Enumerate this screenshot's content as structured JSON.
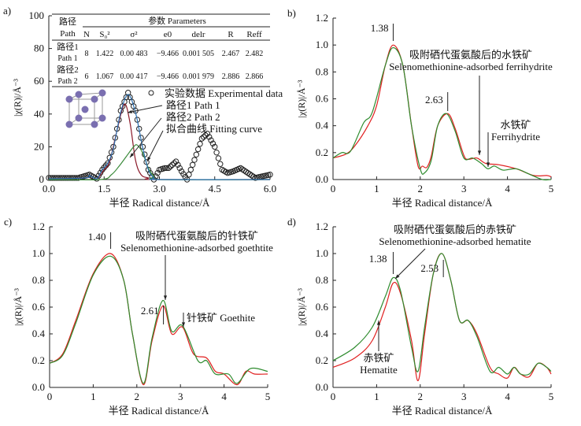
{
  "chart_data": [
    {
      "panel": "a)",
      "type": "line",
      "xlabel": "半径 Radical distance/Å",
      "ylabel": "|χ(R)|/Å⁻³",
      "xlim": [
        0,
        6
      ],
      "ylim": [
        0,
        100
      ],
      "xticks": [
        "0.0",
        "1.5",
        "3.0",
        "4.5",
        "6.0"
      ],
      "yticks": [
        "0",
        "20",
        "40",
        "60",
        "80",
        "100"
      ],
      "table": {
        "header_path": [
          "路径",
          "Path"
        ],
        "header_params": "参数 Parameters",
        "columns": [
          "N",
          "S₀²",
          "σ²",
          "e0",
          "delr",
          "R",
          "Reff"
        ],
        "rows": [
          {
            "path": [
              "路径1",
              "Path 1"
            ],
            "values": [
              "8",
              "1.422",
              "0.00 483",
              "−9.466",
              "0.001 505",
              "2.467",
              "2.482"
            ]
          },
          {
            "path": [
              "路径2",
              "Path 2"
            ],
            "values": [
              "6",
              "1.067",
              "0.00 417",
              "−9.466",
              "0.001 979",
              "2.886",
              "2.866"
            ]
          }
        ]
      },
      "series": [
        {
          "name": "实验数据 Experimental data",
          "style": "circles",
          "color": "#222222",
          "points": [
            [
              0,
              1
            ],
            [
              0.5,
              1
            ],
            [
              0.8,
              1
            ],
            [
              1.1,
              3
            ],
            [
              1.3,
              0.5
            ],
            [
              1.45,
              6
            ],
            [
              1.6,
              10
            ],
            [
              1.75,
              20
            ],
            [
              1.95,
              42
            ],
            [
              2.15,
              53
            ],
            [
              2.35,
              42
            ],
            [
              2.55,
              20
            ],
            [
              2.7,
              6
            ],
            [
              2.85,
              0
            ],
            [
              3.0,
              6
            ],
            [
              3.15,
              7
            ],
            [
              3.25,
              7
            ],
            [
              3.45,
              11
            ],
            [
              3.6,
              5
            ],
            [
              3.75,
              0
            ],
            [
              3.95,
              12
            ],
            [
              4.15,
              25
            ],
            [
              4.3,
              28
            ],
            [
              4.5,
              20
            ],
            [
              4.7,
              6
            ],
            [
              4.85,
              4
            ],
            [
              5.0,
              5
            ],
            [
              5.2,
              7
            ],
            [
              5.4,
              4
            ],
            [
              5.6,
              1
            ],
            [
              5.8,
              2
            ],
            [
              6.0,
              3
            ]
          ]
        },
        {
          "name": "路径1 Path 1",
          "style": "line",
          "color": "#8b1a2a",
          "points": [
            [
              0,
              0.5
            ],
            [
              1.0,
              1
            ],
            [
              1.1,
              2.5
            ],
            [
              1.3,
              0.5
            ],
            [
              1.5,
              6
            ],
            [
              1.65,
              11
            ],
            [
              1.85,
              30
            ],
            [
              2.05,
              46
            ],
            [
              2.2,
              35
            ],
            [
              2.35,
              12
            ],
            [
              2.5,
              3
            ],
            [
              2.7,
              1
            ],
            [
              2.9,
              0
            ],
            [
              6,
              0
            ]
          ]
        },
        {
          "name": "路径2 Path 2",
          "style": "line",
          "color": "#3a8a3a",
          "points": [
            [
              0,
              0
            ],
            [
              1.4,
              0
            ],
            [
              1.7,
              3
            ],
            [
              1.9,
              8
            ],
            [
              2.1,
              14
            ],
            [
              2.3,
              20
            ],
            [
              2.4,
              21
            ],
            [
              2.55,
              16
            ],
            [
              2.7,
              7
            ],
            [
              2.85,
              2
            ],
            [
              3.0,
              0
            ],
            [
              6,
              0
            ]
          ]
        },
        {
          "name": "拟合曲线 Fitting curve",
          "style": "line",
          "color": "#2a6fb0",
          "points": [
            [
              0,
              0.5
            ],
            [
              1.0,
              1
            ],
            [
              1.1,
              2.5
            ],
            [
              1.3,
              0.5
            ],
            [
              1.45,
              6
            ],
            [
              1.6,
              10
            ],
            [
              1.75,
              19
            ],
            [
              1.95,
              41
            ],
            [
              2.15,
              52
            ],
            [
              2.35,
              41
            ],
            [
              2.55,
              19
            ],
            [
              2.7,
              6
            ],
            [
              2.85,
              1
            ],
            [
              3.0,
              0
            ],
            [
              6,
              0
            ]
          ]
        }
      ],
      "annotations": [
        "路径1 Path 1",
        "路径2 Path 2",
        "拟合曲线 Fitting curve"
      ]
    },
    {
      "panel": "b)",
      "type": "line",
      "xlabel": "半径 Radical distance/Å",
      "ylabel": "|χ(R)|/Å⁻³",
      "xlim": [
        0,
        5
      ],
      "ylim": [
        0,
        1.2
      ],
      "xticks": [
        "0",
        "1",
        "2",
        "3",
        "4",
        "5"
      ],
      "yticks": [
        "0.0",
        "0.2",
        "0.4",
        "0.6",
        "0.8",
        "1.0",
        "1.2"
      ],
      "series": [
        {
          "color": "#e02020",
          "points": [
            [
              0,
              0.16
            ],
            [
              0.3,
              0.19
            ],
            [
              0.5,
              0.25
            ],
            [
              0.8,
              0.4
            ],
            [
              1.0,
              0.55
            ],
            [
              1.2,
              0.85
            ],
            [
              1.38,
              1.0
            ],
            [
              1.6,
              0.85
            ],
            [
              1.8,
              0.4
            ],
            [
              1.95,
              0.1
            ],
            [
              2.05,
              0.1
            ],
            [
              2.15,
              0.09
            ],
            [
              2.25,
              0.17
            ],
            [
              2.4,
              0.4
            ],
            [
              2.63,
              0.49
            ],
            [
              2.8,
              0.38
            ],
            [
              3.0,
              0.18
            ],
            [
              3.1,
              0.15
            ],
            [
              3.3,
              0.16
            ],
            [
              3.5,
              0.12
            ],
            [
              3.8,
              0.11
            ],
            [
              4.2,
              0.08
            ],
            [
              4.6,
              0.03
            ],
            [
              4.9,
              0.03
            ],
            [
              5,
              0.02
            ]
          ]
        },
        {
          "color": "#2e8b2e",
          "points": [
            [
              0,
              0.16
            ],
            [
              0.2,
              0.2
            ],
            [
              0.4,
              0.21
            ],
            [
              0.7,
              0.42
            ],
            [
              0.9,
              0.5
            ],
            [
              1.2,
              0.85
            ],
            [
              1.38,
              0.98
            ],
            [
              1.6,
              0.85
            ],
            [
              1.8,
              0.4
            ],
            [
              2.0,
              0.08
            ],
            [
              2.1,
              0.05
            ],
            [
              2.25,
              0.14
            ],
            [
              2.4,
              0.4
            ],
            [
              2.6,
              0.49
            ],
            [
              2.8,
              0.36
            ],
            [
              3.0,
              0.16
            ],
            [
              3.2,
              0.16
            ],
            [
              3.4,
              0.12
            ],
            [
              3.55,
              0.08
            ],
            [
              3.7,
              0.1
            ],
            [
              3.9,
              0.07
            ],
            [
              4.2,
              0.08
            ],
            [
              4.5,
              0.04
            ],
            [
              4.8,
              0.0
            ],
            [
              5,
              0.0
            ]
          ]
        }
      ],
      "annotations": {
        "peak1": "1.38",
        "peak2": "2.63",
        "label1_cn": "吸附硒代蛋氨酸后的水铁矿",
        "label1_en": "Selenomethionine-adsorbed ferrihydrite",
        "label2_cn": "水铁矿",
        "label2_en": "Ferrihydrite"
      }
    },
    {
      "panel": "c)",
      "type": "line",
      "xlabel": "半径 Radical distance/Å",
      "ylabel": "|χ(R)|/Å⁻³",
      "xlim": [
        0,
        5
      ],
      "ylim": [
        0,
        1.2
      ],
      "xticks": [
        "0",
        "1",
        "2",
        "3",
        "4",
        "5"
      ],
      "yticks": [
        "0.0",
        "0.2",
        "0.4",
        "0.6",
        "0.8",
        "1.0",
        "1.2"
      ],
      "series": [
        {
          "color": "#e02020",
          "points": [
            [
              0,
              0.18
            ],
            [
              0.3,
              0.25
            ],
            [
              0.6,
              0.5
            ],
            [
              1.0,
              0.85
            ],
            [
              1.4,
              1.0
            ],
            [
              1.7,
              0.8
            ],
            [
              1.9,
              0.4
            ],
            [
              2.15,
              0.02
            ],
            [
              2.35,
              0.35
            ],
            [
              2.6,
              0.61
            ],
            [
              2.8,
              0.4
            ],
            [
              3.05,
              0.45
            ],
            [
              3.3,
              0.25
            ],
            [
              3.6,
              0.22
            ],
            [
              3.8,
              0.12
            ],
            [
              4.0,
              0.1
            ],
            [
              4.3,
              0.02
            ],
            [
              4.5,
              0.12
            ],
            [
              4.7,
              0.1
            ],
            [
              5,
              0.1
            ]
          ]
        },
        {
          "color": "#2e8b2e",
          "points": [
            [
              0,
              0.18
            ],
            [
              0.3,
              0.24
            ],
            [
              0.6,
              0.48
            ],
            [
              1.0,
              0.84
            ],
            [
              1.4,
              0.98
            ],
            [
              1.7,
              0.8
            ],
            [
              1.9,
              0.4
            ],
            [
              2.15,
              0.03
            ],
            [
              2.35,
              0.37
            ],
            [
              2.6,
              0.65
            ],
            [
              2.8,
              0.42
            ],
            [
              3.05,
              0.46
            ],
            [
              3.4,
              0.2
            ],
            [
              3.6,
              0.2
            ],
            [
              3.8,
              0.1
            ],
            [
              4.1,
              0.1
            ],
            [
              4.3,
              0.03
            ],
            [
              4.6,
              0.14
            ],
            [
              5,
              0.12
            ]
          ]
        }
      ],
      "annotations": {
        "peak1": "1.40",
        "peak2": "2.61",
        "label1_cn": "吸附硒代蛋氨酸后的针铁矿",
        "label1_en": "Selenomethionine-adsorbed goethtite",
        "label2": "针铁矿 Goethite"
      }
    },
    {
      "panel": "d)",
      "type": "line",
      "xlabel": "半径 Radical distance/Å",
      "ylabel": "|χ(R)|/Å⁻³",
      "xlim": [
        0,
        5
      ],
      "ylim": [
        0,
        1.2
      ],
      "xticks": [
        "0",
        "1",
        "2",
        "3",
        "4",
        "5"
      ],
      "yticks": [
        "0.0",
        "0.2",
        "0.4",
        "0.6",
        "0.8",
        "1.0",
        "1.2"
      ],
      "series": [
        {
          "color": "#e02020",
          "points": [
            [
              0,
              0.15
            ],
            [
              0.5,
              0.22
            ],
            [
              0.9,
              0.35
            ],
            [
              1.2,
              0.6
            ],
            [
              1.38,
              0.78
            ],
            [
              1.55,
              0.7
            ],
            [
              1.8,
              0.35
            ],
            [
              1.95,
              0.05
            ],
            [
              2.1,
              0.4
            ],
            [
              2.3,
              0.85
            ],
            [
              2.5,
              1.0
            ],
            [
              2.7,
              0.8
            ],
            [
              2.9,
              0.5
            ],
            [
              3.1,
              0.5
            ],
            [
              3.3,
              0.4
            ],
            [
              3.6,
              0.15
            ],
            [
              3.8,
              0.1
            ],
            [
              4.0,
              0.07
            ],
            [
              4.15,
              0.15
            ],
            [
              4.3,
              0.1
            ],
            [
              4.5,
              0.08
            ],
            [
              4.7,
              0.18
            ],
            [
              4.9,
              0.15
            ],
            [
              5,
              0.1
            ]
          ]
        },
        {
          "color": "#2e8b2e",
          "points": [
            [
              0,
              0.2
            ],
            [
              0.5,
              0.3
            ],
            [
              0.9,
              0.45
            ],
            [
              1.2,
              0.68
            ],
            [
              1.38,
              0.82
            ],
            [
              1.55,
              0.72
            ],
            [
              1.8,
              0.3
            ],
            [
              1.95,
              0.12
            ],
            [
              2.1,
              0.45
            ],
            [
              2.3,
              0.85
            ],
            [
              2.5,
              1.0
            ],
            [
              2.7,
              0.8
            ],
            [
              2.9,
              0.5
            ],
            [
              3.1,
              0.5
            ],
            [
              3.3,
              0.38
            ],
            [
              3.6,
              0.12
            ],
            [
              3.8,
              0.15
            ],
            [
              4.0,
              0.1
            ],
            [
              4.15,
              0.15
            ],
            [
              4.3,
              0.1
            ],
            [
              4.5,
              0.1
            ],
            [
              4.7,
              0.18
            ],
            [
              4.9,
              0.15
            ],
            [
              5,
              0.12
            ]
          ]
        }
      ],
      "annotations": {
        "peak1": "1.38",
        "peak2": "2.53",
        "label1_cn": "吸附硒代蛋氨酸后的赤铁矿",
        "label1_en": "Selenomethionine-adsorbed hematite",
        "label2_cn": "赤铁矿",
        "label2_en": "Hematite"
      }
    }
  ]
}
